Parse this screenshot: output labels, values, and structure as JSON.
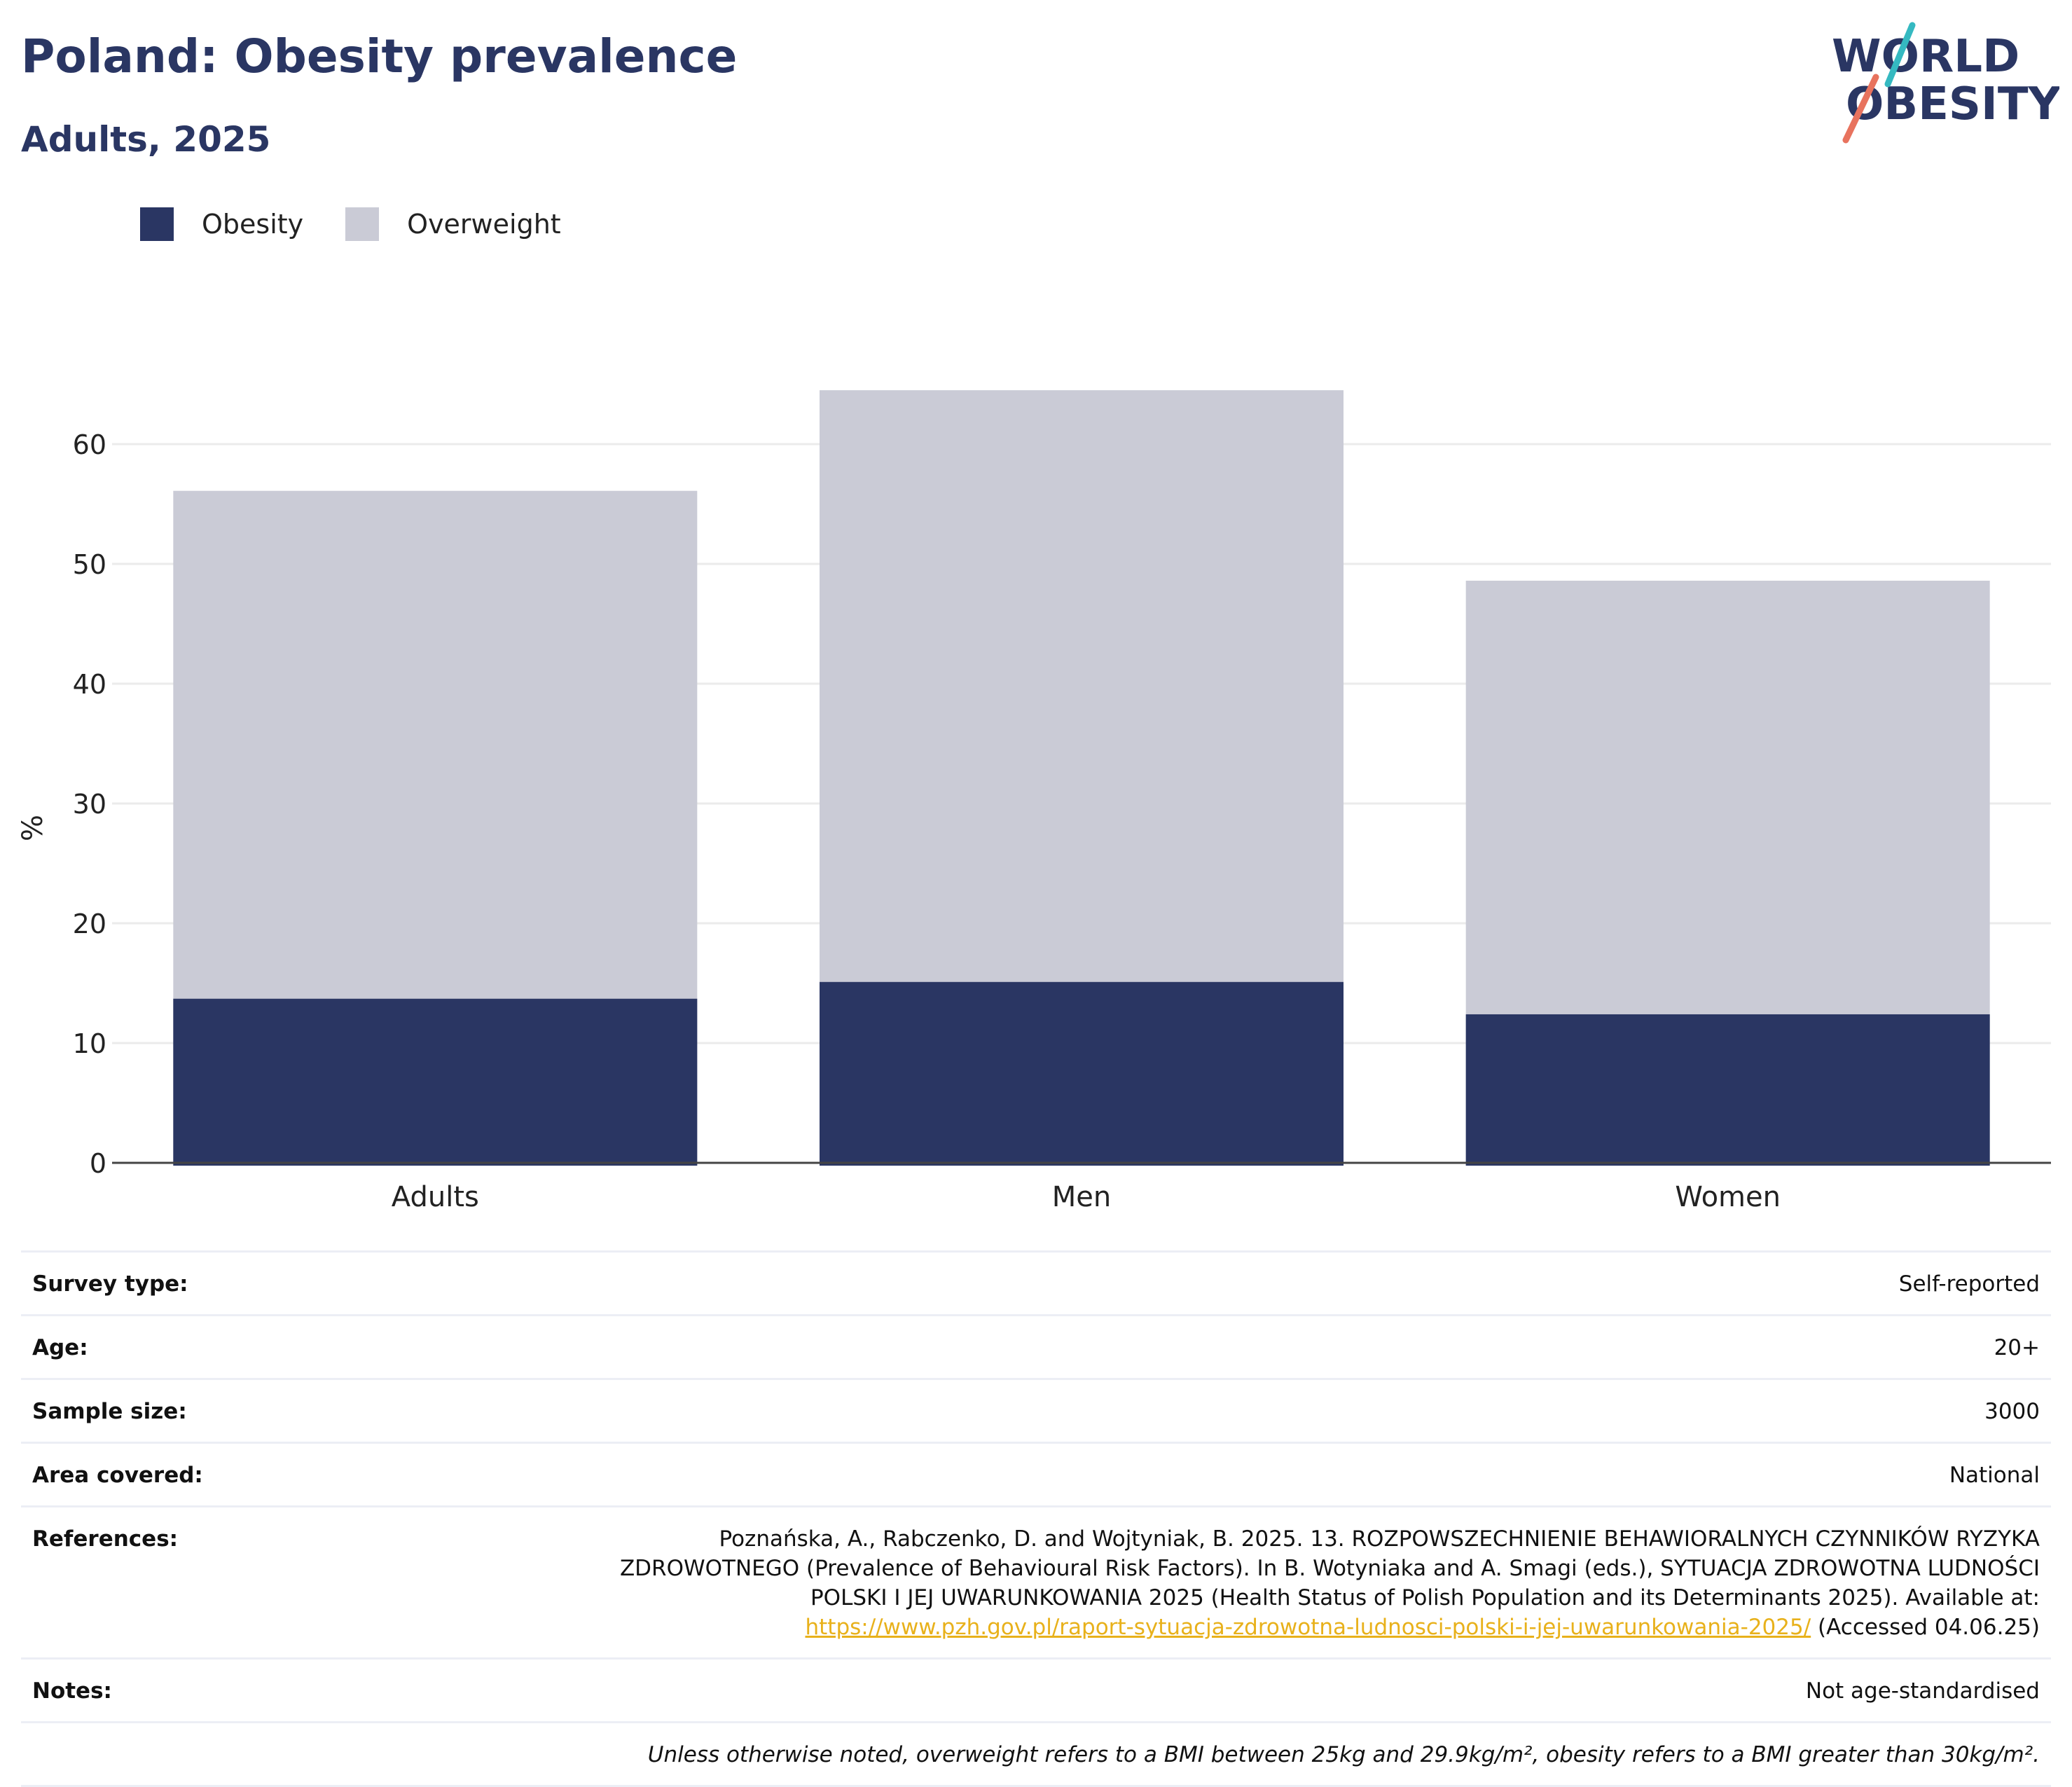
{
  "header": {
    "title": "Poland: Obesity prevalence",
    "subtitle": "Adults, 2025"
  },
  "logo": {
    "line1": "WORLD",
    "line2": "OBESITY",
    "colors": {
      "navy": "#2a3663",
      "teal": "#35b9c1",
      "coral": "#e8735e"
    }
  },
  "chart_data": {
    "type": "bar",
    "stacked": "overlay",
    "categories": [
      "Adults",
      "Men",
      "Women"
    ],
    "series": [
      {
        "name": "Obesity",
        "values": [
          13.7,
          15.1,
          12.4
        ],
        "color": "#2a3663"
      },
      {
        "name": "Overweight",
        "values": [
          56.1,
          64.5,
          48.6
        ],
        "color": "#cacbd6"
      }
    ],
    "ylabel": "%",
    "ylim": [
      0,
      66
    ],
    "yticks": [
      0,
      10,
      20,
      30,
      40,
      50,
      60
    ],
    "grid": true,
    "legend_position": "top-left"
  },
  "info": {
    "survey_type": {
      "label": "Survey type:",
      "value": "Self-reported"
    },
    "age": {
      "label": "Age:",
      "value": "20+"
    },
    "sample_size": {
      "label": "Sample size:",
      "value": "3000"
    },
    "area": {
      "label": "Area covered:",
      "value": "National"
    },
    "references": {
      "label": "References:",
      "line1": "Poznańska, A., Rabczenko, D. and Wojtyniak, B. 2025. 13. ROZPOWSZECHNIENIE BEHAWIORALNYCH CZYNNIKÓW RYZYKA",
      "line2": "ZDROWOTNEGO (Prevalence of Behavioural Risk Factors). In B. Wotyniaka and A. Smagi (eds.), SYTUACJA ZDROWOTNA LUDNOŚCI",
      "line3": "POLSKI I JEJ UWARUNKOWANIA 2025 (Health Status of Polish Population and its Determinants 2025). Available at:",
      "link": "https://www.pzh.gov.pl/raport-sytuacja-zdrowotna-ludnosci-polski-i-jej-uwarunkowania-2025/",
      "accessed": " (Accessed 04.06.25)"
    },
    "notes": {
      "label": "Notes:",
      "value": "Not age-standardised"
    },
    "footnote": "Unless otherwise noted, overweight refers to a BMI between 25kg and 29.9kg/m², obesity refers to a BMI greater than 30kg/m²."
  }
}
